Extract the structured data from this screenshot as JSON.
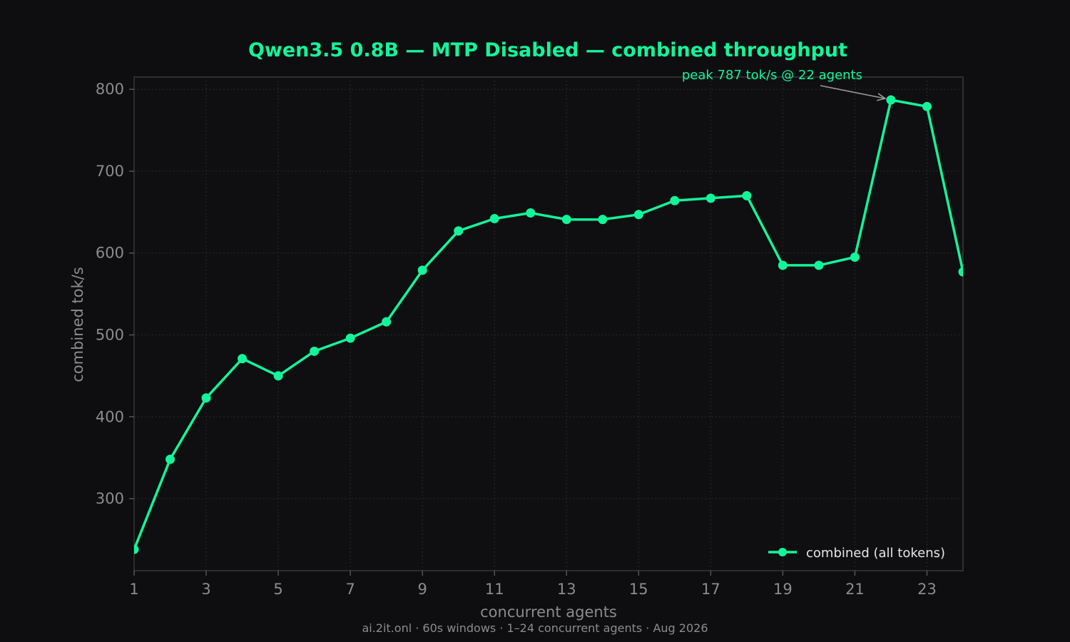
{
  "chart_data": {
    "type": "line",
    "title": "Qwen3.5 0.8B — MTP Disabled — combined throughput",
    "xlabel": "concurrent agents",
    "ylabel": "combined tok/s",
    "xlim": [
      1,
      24
    ],
    "ylim": [
      212,
      815
    ],
    "x_ticks": [
      1,
      3,
      5,
      7,
      9,
      11,
      13,
      15,
      17,
      19,
      21,
      23
    ],
    "y_ticks": [
      300,
      400,
      500,
      600,
      700,
      800
    ],
    "grid": true,
    "legend_position": "bottom-right",
    "series": [
      {
        "name": "combined (all tokens)",
        "x": [
          1,
          2,
          3,
          4,
          5,
          6,
          7,
          8,
          9,
          10,
          11,
          12,
          13,
          14,
          15,
          16,
          17,
          18,
          19,
          20,
          21,
          22,
          23,
          24
        ],
        "values": [
          238,
          348,
          423,
          471,
          450,
          480,
          496,
          516,
          579,
          627,
          642,
          649,
          641,
          641,
          647,
          664,
          667,
          670,
          585,
          585,
          595,
          787,
          779,
          577
        ]
      }
    ],
    "annotation": {
      "text": "peak 787 tok/s @ 22 agents",
      "x": 22,
      "y": 787
    },
    "footer": "ai.2it.onl · 60s windows · 1–24 concurrent agents · Aug 2026"
  },
  "colors": {
    "background": "#0e0e10",
    "accent": "#12f59a",
    "grid": "#2a2a2a",
    "frame": "#2e2e2e",
    "muted_text": "#8c8c8c",
    "arrow": "#9a9a9a"
  }
}
